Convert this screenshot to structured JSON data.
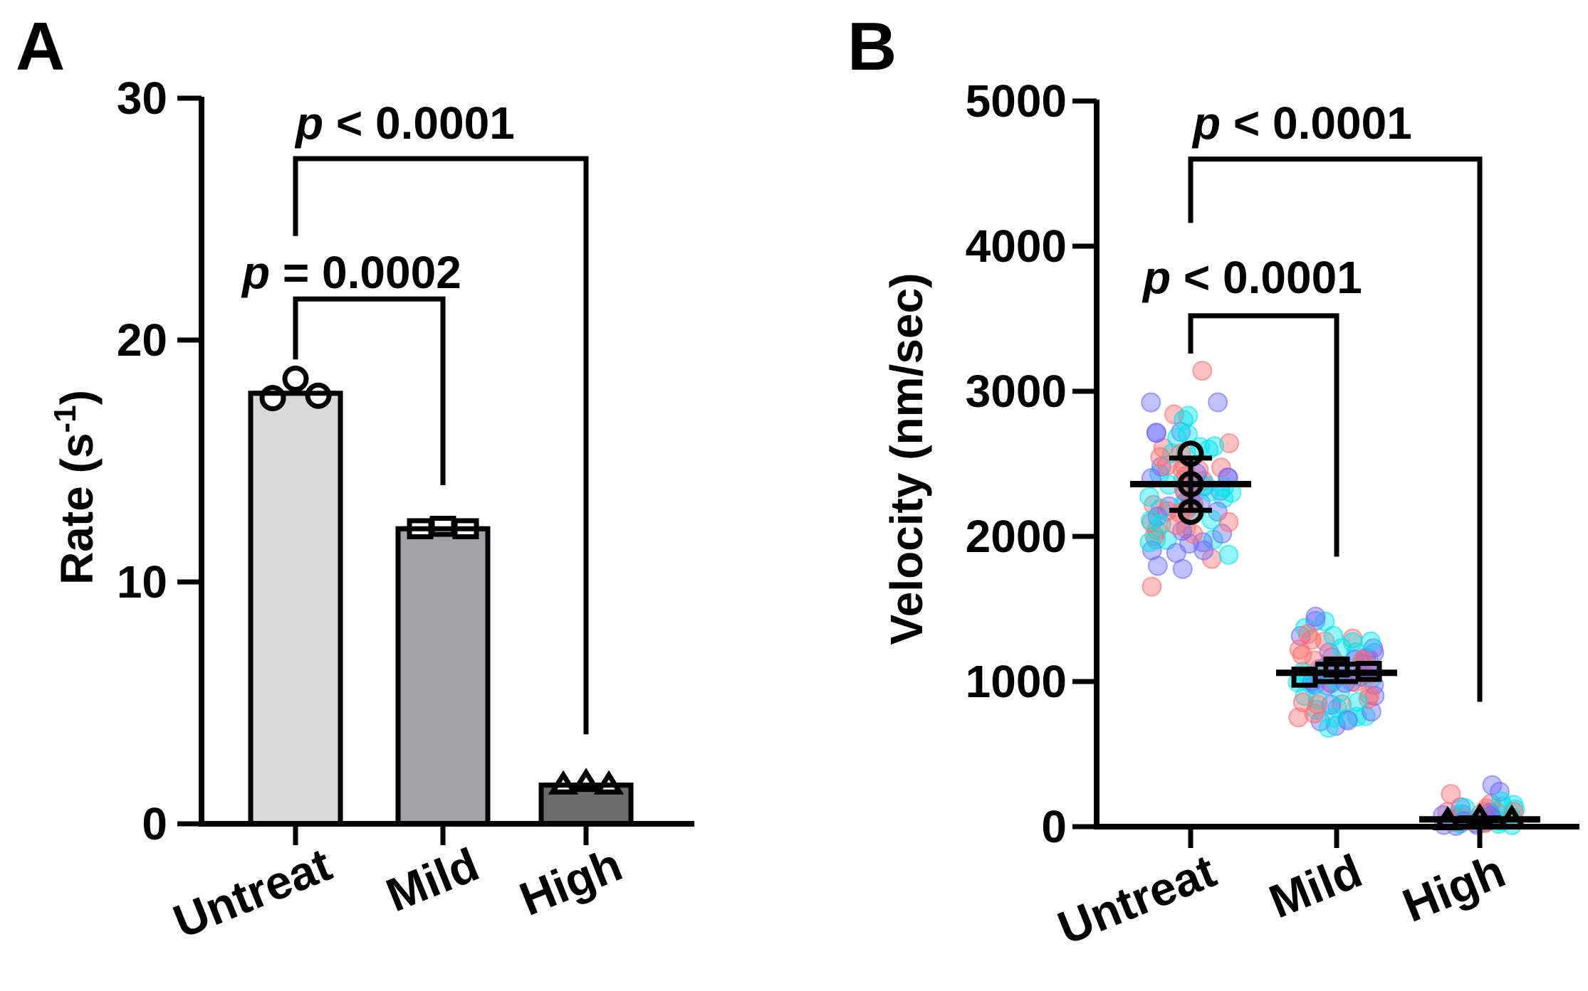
{
  "chart_data": [
    {
      "panel": "A",
      "type": "bar",
      "ylabel_main": "Rate (s",
      "ylabel_sup": "-1",
      "ylabel_close": ")",
      "ylim": [
        0,
        30
      ],
      "yticks": [
        0,
        10,
        20,
        30
      ],
      "categories": [
        "Untreat",
        "Mild",
        "High"
      ],
      "values": [
        17.8,
        12.2,
        1.6
      ],
      "bar_colors": [
        "#d8d8d8",
        "#a3a3a7",
        "#6b6b6b"
      ],
      "points": [
        [
          17.6,
          18.4,
          17.7
        ],
        [
          12.2,
          12.3,
          12.2
        ],
        [
          1.6,
          1.7,
          1.6
        ]
      ],
      "markers": [
        "circle",
        "square",
        "triangle"
      ],
      "comparisons": [
        {
          "from": 0,
          "to": 1,
          "y": 21.7,
          "label_p": "p",
          "label_rest": " = 0.0002"
        },
        {
          "from": 0,
          "to": 2,
          "y": 27.5,
          "label_p": "p",
          "label_rest": " < 0.0001"
        }
      ]
    },
    {
      "panel": "B",
      "type": "scatter",
      "ylabel": "Velocity (nm/sec)",
      "ylim": [
        0,
        5000
      ],
      "yticks": [
        0,
        1000,
        2000,
        3000,
        4000,
        5000
      ],
      "categories": [
        "Untreat",
        "Mild",
        "High"
      ],
      "means": [
        2360,
        1060,
        50
      ],
      "errors": [
        180,
        60,
        10
      ],
      "replicate_means": [
        [
          2170,
          2570,
          2360
        ],
        [
          1030,
          1100,
          1070
        ],
        [
          40,
          60,
          50
        ]
      ],
      "markers": [
        "circle",
        "square",
        "triangle"
      ],
      "dot_colors": [
        "#ff6b6b",
        "#00e5ef",
        "#6b6bff"
      ],
      "comparisons": [
        {
          "from": 0,
          "to": 1,
          "y": 3520,
          "label_p": "p",
          "label_rest": " < 0.0001"
        },
        {
          "from": 0,
          "to": 2,
          "y": 4600,
          "label_p": "p",
          "label_rest": " < 0.0001"
        }
      ]
    }
  ]
}
